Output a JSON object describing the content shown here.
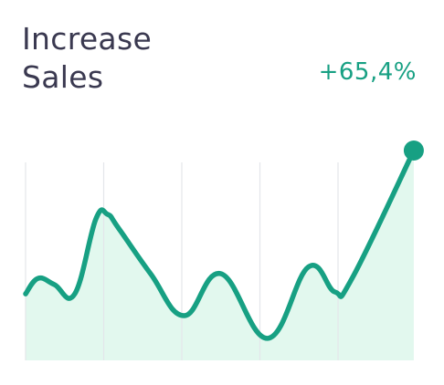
{
  "chart_data": {
    "type": "line",
    "title": "Increase Sales",
    "annotation": "+65,4%",
    "x": [
      0,
      0.16,
      0.37,
      0.63,
      0.9,
      1.05,
      1.19,
      1.6,
      2.03,
      2.5,
      3.1,
      3.62,
      3.96,
      4.18,
      4.97
    ],
    "values": [
      31.7,
      39.1,
      36.1,
      31.7,
      67.4,
      69.6,
      63,
      41.3,
      21.3,
      41.3,
      10.5,
      44.5,
      32.6,
      39.1,
      100
    ],
    "color": "#17a083",
    "fill": "#e2f8ee",
    "xlim": [
      0,
      5
    ],
    "ylim": [
      0,
      100
    ],
    "xticks": [
      0,
      1,
      2,
      3,
      4
    ],
    "grid": true
  }
}
